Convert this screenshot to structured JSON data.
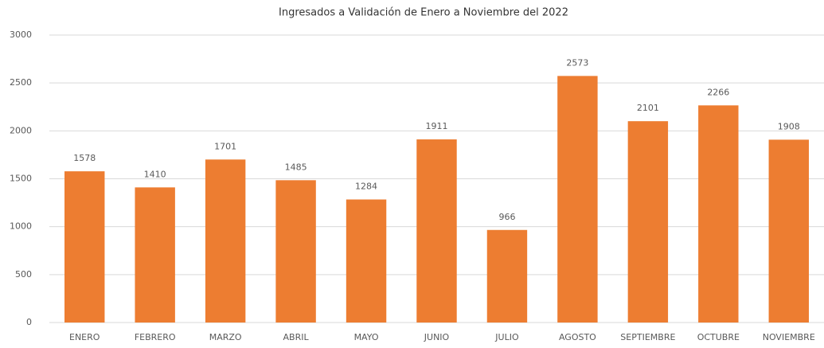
{
  "chart_data": {
    "type": "bar",
    "title": "Ingresados a Validación de Enero a Noviembre del 2022",
    "categories": [
      "ENERO",
      "FEBRERO",
      "MARZO",
      "ABRIL",
      "MAYO",
      "JUNIO",
      "JULIO",
      "AGOSTO",
      "SEPTIEMBRE",
      "OCTUBRE",
      "NOVIEMBRE"
    ],
    "values": [
      1578,
      1410,
      1701,
      1485,
      1284,
      1911,
      966,
      2573,
      2101,
      2266,
      1908
    ],
    "color": "#ed7d31",
    "ylim": [
      0,
      3000
    ],
    "yticks": [
      0,
      500,
      1000,
      1500,
      2000,
      2500,
      3000
    ],
    "grid": true
  }
}
